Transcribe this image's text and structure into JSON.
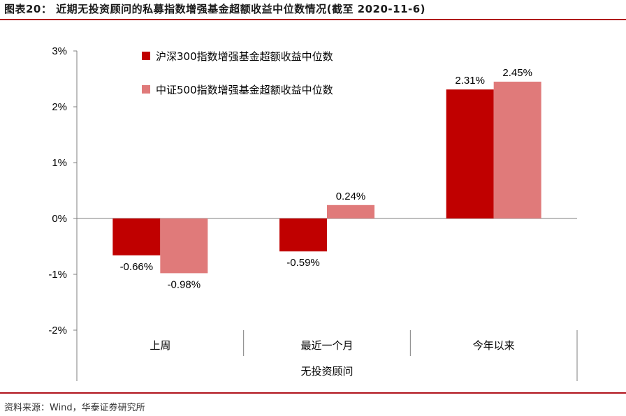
{
  "figure": {
    "title": "图表20：  近期无投资顾问的私募指数增强基金超额收益中位数情况(截至 2020-11-6)",
    "source": "资料来源：Wind，华泰证券研究所"
  },
  "colors": {
    "accent_rule": "#b0121b",
    "series1": "#c00000",
    "series2": "#e07a7a",
    "axis": "#7f7f7f"
  },
  "chart_data": {
    "type": "bar",
    "title": "",
    "xlabel": "无投资顾问",
    "ylabel": "",
    "categories": [
      "上周",
      "最近一个月",
      "今年以来"
    ],
    "series": [
      {
        "name": "沪深300指数增强基金超额收益中位数",
        "values": [
          -0.66,
          -0.59,
          2.31
        ],
        "labels": [
          "-0.66%",
          "-0.59%",
          "2.31%"
        ]
      },
      {
        "name": "中证500指数增强基金超额收益中位数",
        "values": [
          -0.98,
          0.24,
          2.45
        ],
        "labels": [
          "-0.98%",
          "0.24%",
          "2.45%"
        ]
      }
    ],
    "ylim": [
      -2,
      3
    ],
    "yticks": [
      3,
      2,
      1,
      0,
      -1,
      -2
    ],
    "ytick_labels": [
      "3%",
      "2%",
      "1%",
      "0%",
      "-1%",
      "-2%"
    ],
    "grid": false,
    "legend_position": "top-left"
  }
}
